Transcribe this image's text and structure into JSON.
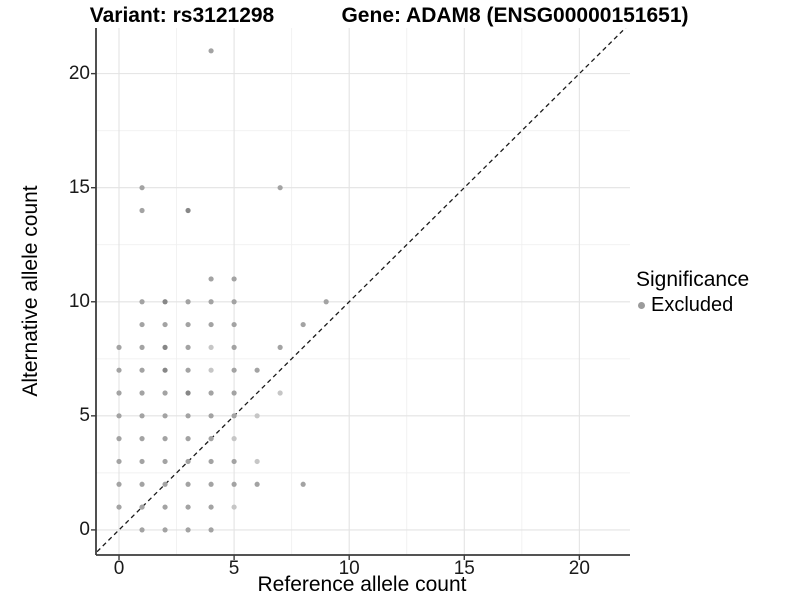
{
  "header": {
    "title_left": "Variant: rs3121298",
    "title_right": "Gene: ADAM8 (ENSG00000151651)"
  },
  "legend": {
    "title": "Significance",
    "items": [
      {
        "label": "Excluded",
        "color": "#9b9b9b"
      }
    ]
  },
  "colors": {
    "point_normal": "#a3a3a3",
    "point_dark": "#878787",
    "point_light": "#c6c6c6",
    "grid_major": "#e3e3e3",
    "grid_minor": "#f0f0f0",
    "axis_line": "#3c3c3c",
    "identity_line": "#1a1a1a"
  },
  "chart_data": {
    "type": "scatter",
    "title": "Variant: rs3121298  /  Gene: ADAM8 (ENSG00000151651)",
    "xlabel": "Reference allele count",
    "ylabel": "Alternative allele count",
    "xlim": [
      -1,
      22.2
    ],
    "ylim": [
      -1.1,
      22
    ],
    "xticks": [
      0,
      5,
      10,
      15,
      20
    ],
    "yticks": [
      0,
      5,
      10,
      15,
      20
    ],
    "xminor": [
      2.5,
      7.5,
      12.5,
      17.5
    ],
    "yminor": [
      2.5,
      7.5,
      12.5,
      17.5
    ],
    "grid": true,
    "legend_position": "right",
    "identity_line": {
      "style": "dashed",
      "equation": "y = x"
    },
    "series": [
      {
        "name": "Excluded",
        "points": [
          [
            0,
            1
          ],
          [
            0,
            2
          ],
          [
            0,
            3
          ],
          [
            0,
            4
          ],
          [
            0,
            5
          ],
          [
            0,
            6
          ],
          [
            0,
            7
          ],
          [
            0,
            8
          ],
          [
            1,
            0
          ],
          [
            1,
            1
          ],
          [
            1,
            2
          ],
          [
            1,
            3
          ],
          [
            1,
            4
          ],
          [
            1,
            5
          ],
          [
            1,
            6
          ],
          [
            1,
            7
          ],
          [
            1,
            8
          ],
          [
            1,
            9
          ],
          [
            1,
            10
          ],
          [
            1,
            14
          ],
          [
            1,
            15
          ],
          [
            2,
            0
          ],
          [
            2,
            1
          ],
          [
            2,
            2
          ],
          [
            2,
            3
          ],
          [
            2,
            4
          ],
          [
            2,
            5
          ],
          [
            2,
            6
          ],
          [
            2,
            7,
            "d"
          ],
          [
            2,
            8,
            "d"
          ],
          [
            2,
            9
          ],
          [
            2,
            10,
            "d"
          ],
          [
            3,
            0
          ],
          [
            3,
            1
          ],
          [
            3,
            2
          ],
          [
            3,
            3
          ],
          [
            3,
            4
          ],
          [
            3,
            5
          ],
          [
            3,
            6,
            "d"
          ],
          [
            3,
            7
          ],
          [
            3,
            8
          ],
          [
            3,
            9
          ],
          [
            3,
            10
          ],
          [
            3,
            14,
            "d"
          ],
          [
            4,
            0
          ],
          [
            4,
            1
          ],
          [
            4,
            2
          ],
          [
            4,
            3
          ],
          [
            4,
            4
          ],
          [
            4,
            5
          ],
          [
            4,
            6
          ],
          [
            4,
            7,
            "l"
          ],
          [
            4,
            8,
            "l"
          ],
          [
            4,
            9
          ],
          [
            4,
            10
          ],
          [
            4,
            11
          ],
          [
            4,
            21
          ],
          [
            5,
            1,
            "l"
          ],
          [
            5,
            2
          ],
          [
            5,
            3
          ],
          [
            5,
            4,
            "l"
          ],
          [
            5,
            5
          ],
          [
            5,
            6
          ],
          [
            5,
            7
          ],
          [
            5,
            8
          ],
          [
            5,
            9
          ],
          [
            5,
            10
          ],
          [
            5,
            11
          ],
          [
            6,
            2
          ],
          [
            6,
            3,
            "l"
          ],
          [
            6,
            5,
            "l"
          ],
          [
            6,
            7
          ],
          [
            7,
            6,
            "l"
          ],
          [
            7,
            8
          ],
          [
            7,
            15
          ],
          [
            8,
            2
          ],
          [
            8,
            9
          ],
          [
            9,
            10
          ]
        ]
      }
    ]
  }
}
